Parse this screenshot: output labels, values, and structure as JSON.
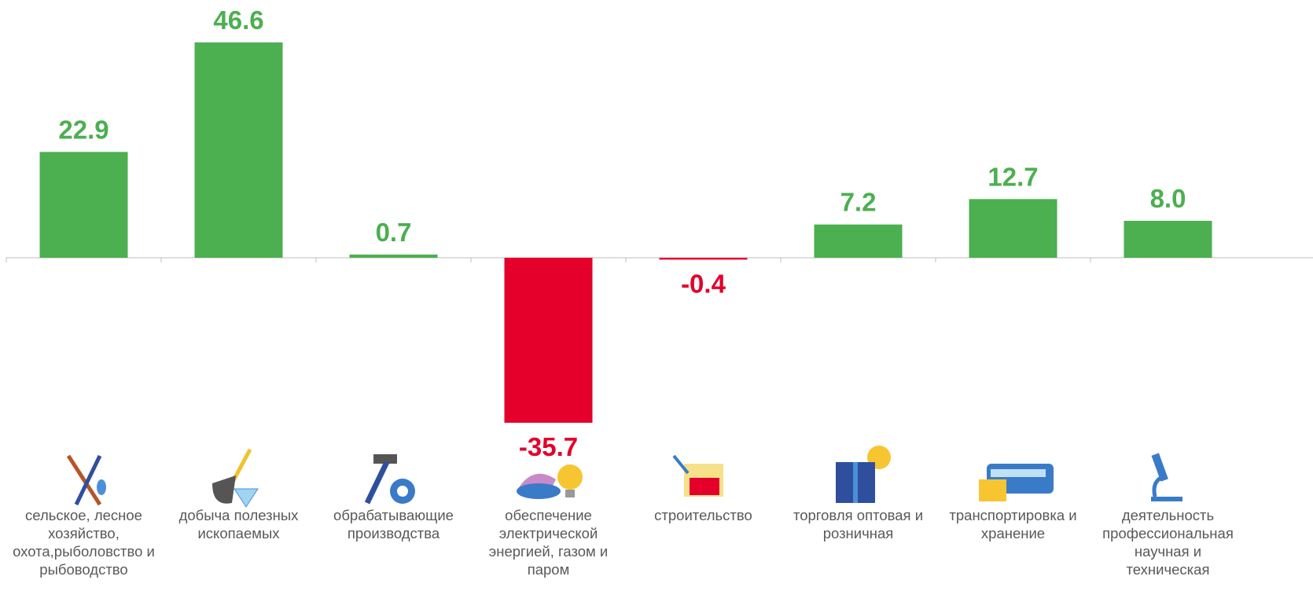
{
  "chart_data": {
    "type": "bar",
    "categories": [
      "сельское, лесное хозяйство, охота,рыболовство и рыбоводство",
      "добыча полезных ископаемых",
      "обрабатывающие производства",
      "обеспечение электрической энергией, газом и паром",
      "строительство",
      "торговля оптовая и розничная",
      "транспортировка и хранение",
      "деятельность профессиональная научная и техническая"
    ],
    "values": [
      22.9,
      46.6,
      0.7,
      -35.7,
      -0.4,
      7.2,
      12.7,
      8.0
    ],
    "value_labels": [
      "22.9",
      "46.6",
      "0.7",
      "-35.7",
      "-0.4",
      "7.2",
      "12.7",
      "8.0"
    ],
    "color": "#4caf50",
    "negative_color": "#e4002b"
  }
}
